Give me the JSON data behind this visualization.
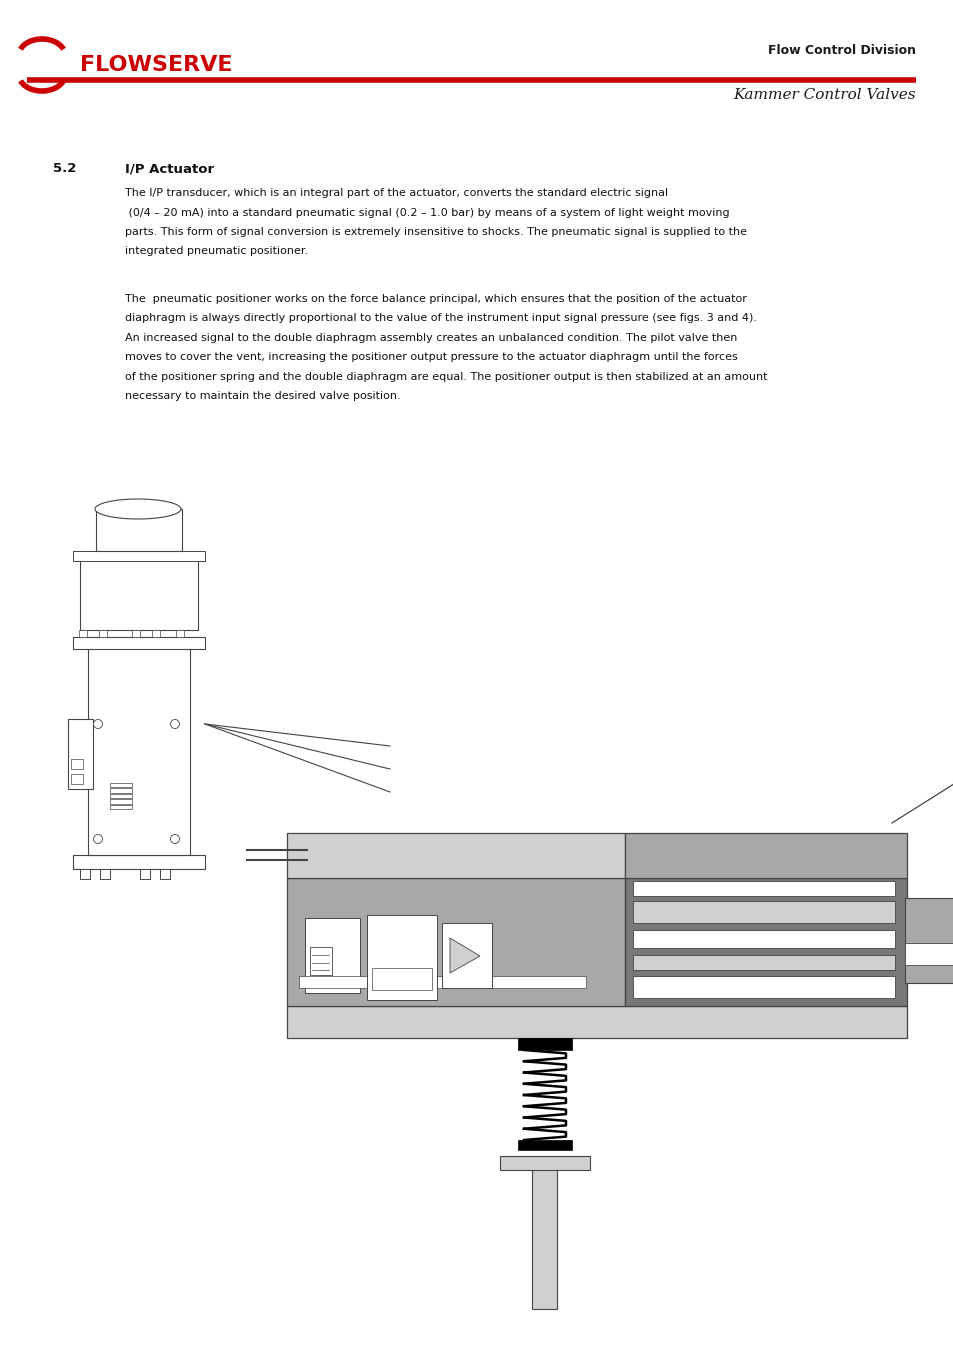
{
  "page_width": 9.54,
  "page_height": 13.51,
  "bg_color": "#ffffff",
  "header": {
    "flowserve_text": "FLOWSERVE",
    "flowserve_color": "#cc0000",
    "red_line_color": "#cc0000",
    "right_top_text": "Flow Control Division",
    "right_bottom_text": "Kammer Control Valves"
  },
  "section_number": "5.2",
  "section_title": "I/P Actuator",
  "para1_line1": "The I/P transducer, which is an integral part of the actuator, converts the standard electric signal",
  "para1_line2": " (0/4 – 20 mA) into a standard pneumatic signal (0.2 – 1.0 bar) by means of a system of light weight moving",
  "para1_line3": "parts. This form of signal conversion is extremely insensitive to shocks. The pneumatic signal is supplied to the",
  "para1_line4": "integrated pneumatic positioner.",
  "para2_line1": "The  pneumatic positioner works on the force balance principal, which ensures that the position of the actuator",
  "para2_line2": "diaphragm is always directly proportional to the value of the instrument input signal pressure (see figs. 3 and 4).",
  "para2_line3": "An increased signal to the double diaphragm assembly creates an unbalanced condition. The pilot valve then",
  "para2_line4": "moves to cover the vent, increasing the positioner output pressure to the actuator diaphragm until the forces",
  "para2_line5": "of the positioner spring and the double diaphragm are equal. The positioner output is then stabilized at an amount",
  "para2_line6": "necessary to maintain the desired valve position.",
  "gray_light": "#d0d0d0",
  "gray_medium": "#a8a8a8",
  "gray_dark": "#787878",
  "gray_fill": "#c0c0c0",
  "outline_color": "#444444",
  "black": "#000000",
  "white": "#ffffff"
}
